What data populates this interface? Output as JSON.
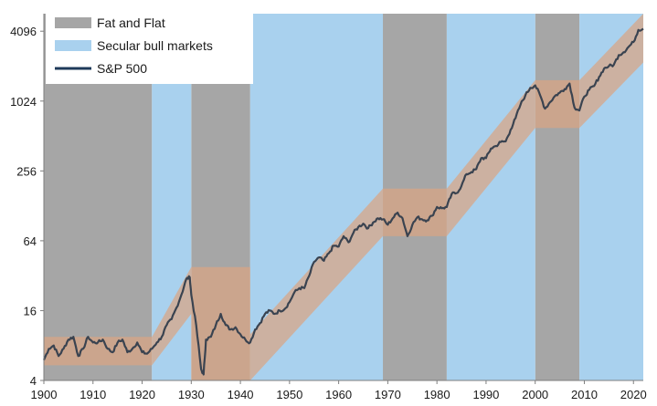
{
  "chart_data": {
    "type": "line",
    "title": "",
    "xlabel": "",
    "ylabel": "",
    "y_scale": "log2",
    "xlim": [
      1900,
      2022
    ],
    "ylim": [
      4,
      5800
    ],
    "x_ticks": [
      1900,
      1910,
      1920,
      1930,
      1940,
      1950,
      1960,
      1970,
      1980,
      1990,
      2000,
      2010,
      2020
    ],
    "y_ticks": [
      4,
      16,
      64,
      256,
      1024,
      4096
    ],
    "legend": {
      "placement": "top-left",
      "entries": [
        {
          "label": "Fat and Flat",
          "color": "#a6a6a6",
          "kind": "box"
        },
        {
          "label": "Secular bull markets",
          "color": "#a9d1ee",
          "kind": "box"
        },
        {
          "label": "S&P 500",
          "color": "#1f3a5a",
          "kind": "line"
        }
      ]
    },
    "fat_and_flat_periods": [
      [
        1900,
        1922
      ],
      [
        1930,
        1942
      ],
      [
        1969,
        1982
      ],
      [
        2000,
        2009
      ]
    ],
    "secular_bull_periods": [
      [
        1922,
        1930
      ],
      [
        1942,
        1969
      ],
      [
        1982,
        2000
      ],
      [
        2009,
        2022
      ]
    ],
    "band": {
      "color": "#d9a584",
      "segments": [
        {
          "x": [
            1900,
            1922
          ],
          "lower": [
            5.4,
            5.4
          ],
          "upper": [
            9.5,
            9.5
          ]
        },
        {
          "x": [
            1922,
            1930
          ],
          "lower": [
            5.4,
            15.0
          ],
          "upper": [
            9.5,
            38.0
          ]
        },
        {
          "x": [
            1930,
            1942
          ],
          "lower": [
            4.0,
            4.0
          ],
          "upper": [
            38.0,
            38.0
          ]
        },
        {
          "x": [
            1942,
            1969
          ],
          "lower": [
            4.0,
            70.0
          ],
          "upper": [
            10.0,
            180.0
          ]
        },
        {
          "x": [
            1969,
            1982
          ],
          "lower": [
            70.0,
            70.0
          ],
          "upper": [
            180.0,
            180.0
          ]
        },
        {
          "x": [
            1982,
            2000
          ],
          "lower": [
            70.0,
            600.0
          ],
          "upper": [
            180.0,
            1550.0
          ]
        },
        {
          "x": [
            2000,
            2009
          ],
          "lower": [
            600.0,
            600.0
          ],
          "upper": [
            1550.0,
            1550.0
          ]
        },
        {
          "x": [
            2009,
            2022
          ],
          "lower": [
            600.0,
            2200.0
          ],
          "upper": [
            1550.0,
            5800.0
          ]
        }
      ]
    },
    "series": [
      {
        "name": "S&P 500",
        "color": "#3a4350",
        "x": [
          1900,
          1901,
          1902,
          1903,
          1904,
          1905,
          1906,
          1907,
          1908,
          1909,
          1910,
          1911,
          1912,
          1913,
          1914,
          1915,
          1916,
          1917,
          1918,
          1919,
          1920,
          1921,
          1922,
          1923,
          1924,
          1925,
          1926,
          1927,
          1928,
          1929,
          1929.7,
          1930,
          1931,
          1932,
          1932.5,
          1933,
          1934,
          1935,
          1936,
          1937,
          1938,
          1939,
          1940,
          1941,
          1942,
          1943,
          1944,
          1945,
          1946,
          1947,
          1948,
          1949,
          1950,
          1951,
          1952,
          1953,
          1954,
          1955,
          1956,
          1957,
          1958,
          1959,
          1960,
          1961,
          1962,
          1963,
          1964,
          1965,
          1966,
          1967,
          1968,
          1969,
          1970,
          1971,
          1972,
          1973,
          1974,
          1975,
          1976,
          1977,
          1978,
          1979,
          1980,
          1981,
          1982,
          1983,
          1984,
          1985,
          1986,
          1987,
          1988,
          1989,
          1990,
          1991,
          1992,
          1993,
          1994,
          1995,
          1996,
          1997,
          1998,
          1999,
          2000,
          2001,
          2002,
          2003,
          2004,
          2005,
          2006,
          2007,
          2008,
          2009,
          2010,
          2011,
          2012,
          2013,
          2014,
          2015,
          2016,
          2017,
          2018,
          2019,
          2020,
          2021,
          2022
        ],
        "values": [
          6.0,
          7.5,
          8.0,
          6.5,
          7.5,
          9.0,
          9.5,
          6.5,
          7.5,
          9.5,
          8.5,
          8.5,
          9.0,
          7.5,
          7.0,
          8.5,
          9.0,
          7.0,
          7.5,
          8.5,
          7.0,
          6.8,
          7.5,
          8.5,
          9.5,
          12.0,
          13.5,
          17.0,
          22.0,
          30.0,
          31.0,
          22.0,
          12.0,
          5.0,
          4.5,
          9.0,
          9.5,
          12.0,
          15.0,
          12.0,
          11.0,
          11.5,
          10.0,
          9.0,
          8.5,
          11.0,
          12.5,
          15.0,
          16.0,
          15.0,
          16.0,
          16.5,
          19.0,
          23.0,
          25.0,
          25.0,
          32.0,
          42.0,
          46.0,
          43.0,
          50.0,
          58.0,
          57.0,
          70.0,
          62.0,
          75.0,
          84.0,
          90.0,
          82.0,
          92.0,
          100.0,
          98.0,
          88.0,
          100.0,
          112.0,
          100.0,
          70.0,
          88.0,
          102.0,
          98.0,
          96.0,
          105.0,
          125.0,
          122.0,
          125.0,
          162.0,
          165.0,
          190.0,
          240.0,
          250.0,
          265.0,
          330.0,
          330.0,
          400.0,
          420.0,
          455.0,
          460.0,
          580.0,
          730.0,
          950.0,
          1150.0,
          1330.0,
          1400.0,
          1150.0,
          880.0,
          1000.0,
          1130.0,
          1210.0,
          1300.0,
          1450.0,
          900.0,
          850.0,
          1120.0,
          1280.0,
          1380.0,
          1650.0,
          1950.0,
          2050.0,
          2100.0,
          2550.0,
          2700.0,
          3000.0,
          3300.0,
          4200.0,
          4300.0
        ]
      }
    ]
  }
}
